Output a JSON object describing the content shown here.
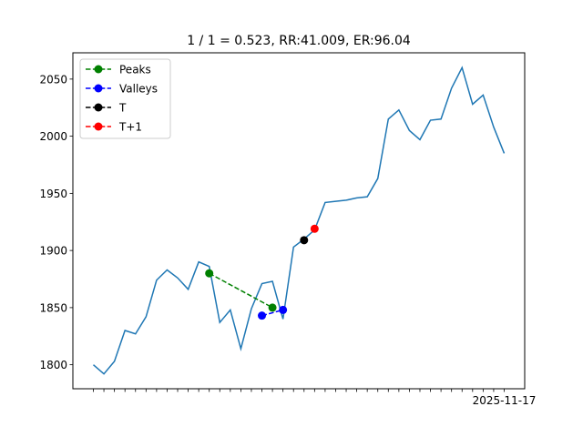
{
  "chart_data": {
    "type": "line",
    "title": "1 / 1 = 0.523, RR:41.009, ER:96.04",
    "xlabel": "",
    "ylabel": "",
    "ylim": [
      1779,
      2073
    ],
    "yticks": [
      1800,
      1850,
      1900,
      1950,
      2000,
      2050
    ],
    "grid": false,
    "legend_placement": "upper-left",
    "x_tick_labels_overlapping": true,
    "x_last_tick_label": "2025-11-17",
    "main_series": {
      "color": "#1f77b4",
      "values": [
        1800,
        1792,
        1803,
        1830,
        1827,
        1842,
        1874,
        1883,
        1876,
        1866,
        1890,
        1886,
        1837,
        1848,
        1814,
        1849,
        1871,
        1873,
        1840,
        1903,
        1910,
        1918,
        1942,
        1943,
        1944,
        1946,
        1947,
        1963,
        2015,
        2023,
        2005,
        1997,
        2014,
        2015,
        2042,
        2060,
        2028,
        2036,
        2008,
        1985
      ]
    },
    "markers": [
      {
        "name": "Peaks",
        "color": "#008000",
        "style": "dashed",
        "points": [
          [
            11,
            1880
          ],
          [
            17,
            1850
          ]
        ]
      },
      {
        "name": "Valleys",
        "color": "#0000ff",
        "style": "dashed",
        "points": [
          [
            16,
            1843
          ],
          [
            18,
            1848
          ]
        ]
      },
      {
        "name": "T",
        "color": "#000000",
        "style": "dashed",
        "points": [
          [
            20,
            1909
          ]
        ]
      },
      {
        "name": "T+1",
        "color": "#ff0000",
        "style": "dashed",
        "points": [
          [
            21,
            1919
          ]
        ]
      }
    ]
  }
}
